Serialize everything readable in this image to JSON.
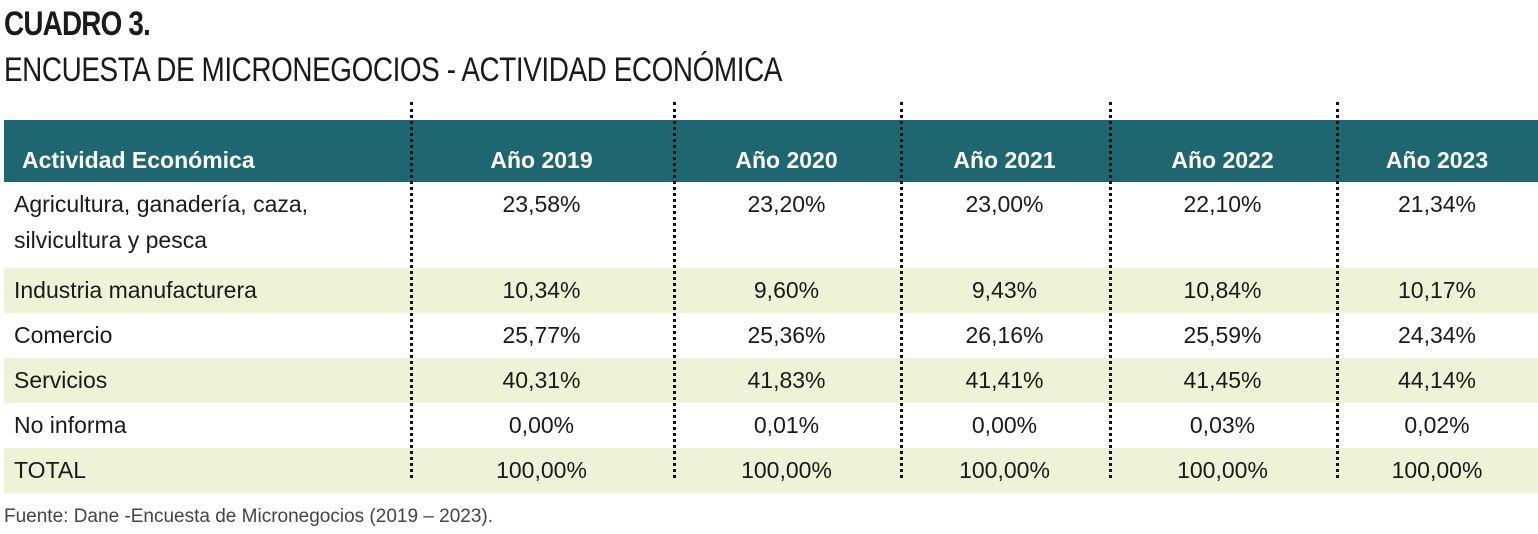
{
  "title": "CUADRO 3.",
  "subtitle": "ENCUESTA DE MICRONEGOCIOS - ACTIVIDAD ECONÓMICA",
  "table": {
    "headers": [
      "Actividad Económica",
      "Año 2019",
      "Año 2020",
      "Año 2021",
      "Año 2022",
      "Año 2023"
    ],
    "rows": [
      {
        "label": "Agricultura, ganadería, caza, silvicultura y pesca",
        "values": [
          "23,58%",
          "23,20%",
          "23,00%",
          "22,10%",
          "21,34%"
        ]
      },
      {
        "label": "Industria manufacturera",
        "values": [
          "10,34%",
          "9,60%",
          "9,43%",
          "10,84%",
          "10,17%"
        ]
      },
      {
        "label": "Comercio",
        "values": [
          "25,77%",
          "25,36%",
          "26,16%",
          "25,59%",
          "24,34%"
        ]
      },
      {
        "label": "Servicios",
        "values": [
          "40,31%",
          "41,83%",
          "41,41%",
          "41,45%",
          "44,14%"
        ]
      },
      {
        "label": "No informa",
        "values": [
          "0,00%",
          "0,01%",
          "0,00%",
          "0,03%",
          "0,02%"
        ]
      },
      {
        "label": "TOTAL",
        "values": [
          "100,00%",
          "100,00%",
          "100,00%",
          "100,00%",
          "100,00%"
        ]
      }
    ]
  },
  "source": "Fuente: Dane -Encuesta de Micronegocios (2019 – 2023).",
  "colors": {
    "header_bg": "#1e6670",
    "header_text": "#ffffff",
    "row_shade": "#eff2d6"
  }
}
